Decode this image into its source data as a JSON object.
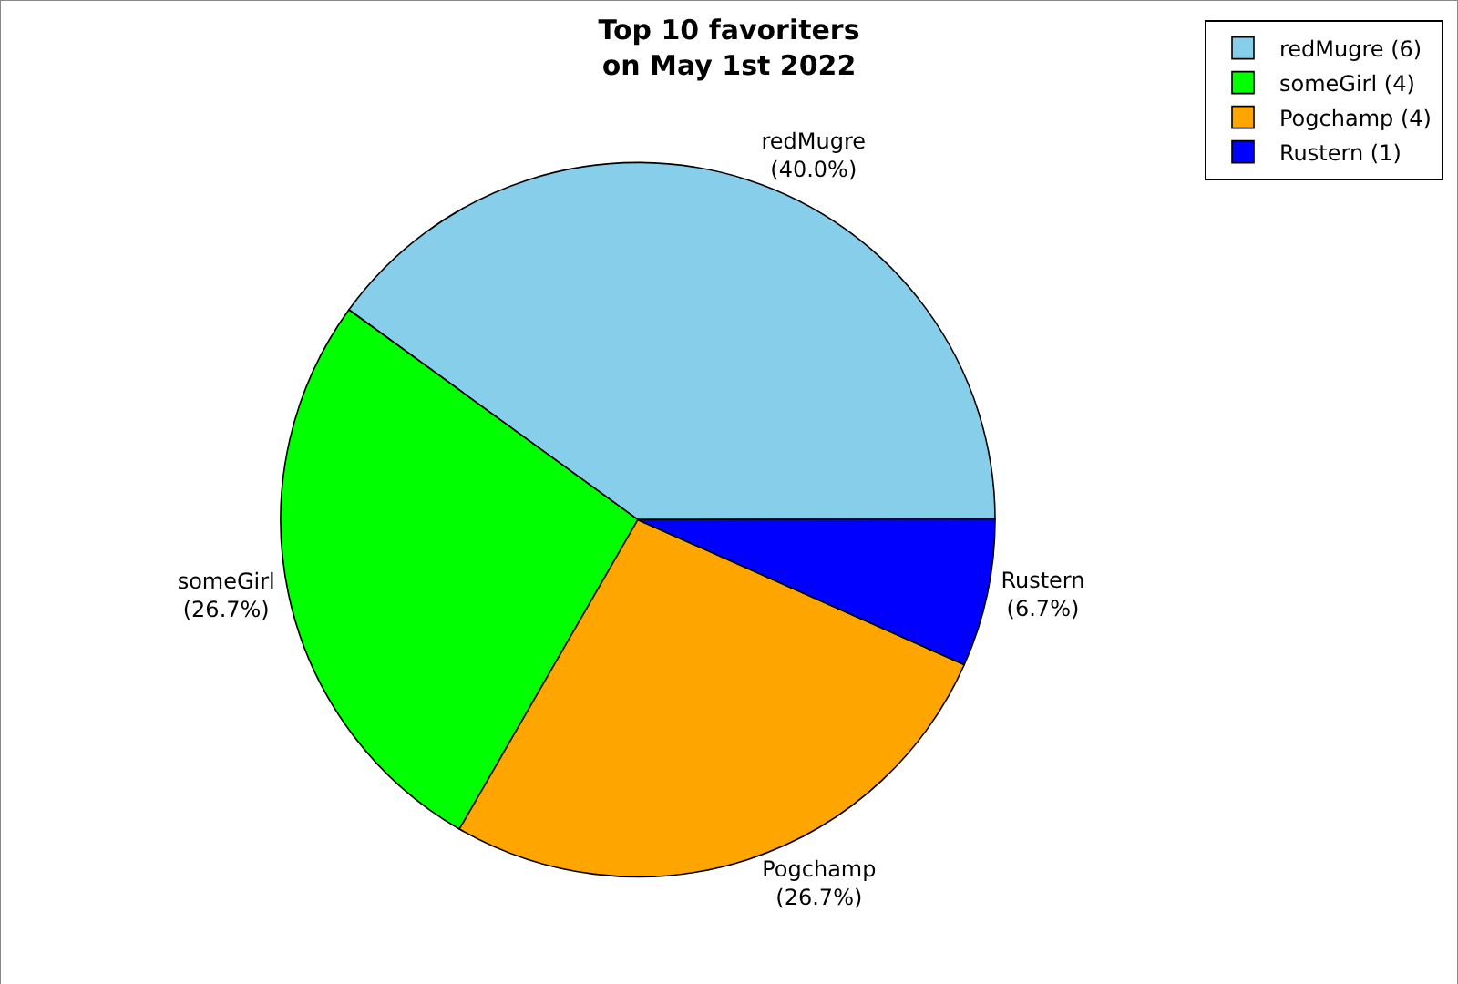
{
  "chart_data": {
    "type": "pie",
    "title": "Top 10 favoriters\non May 1st 2022",
    "categories": [
      "redMugre (6)",
      "someGirl (4)",
      "Pogchamp (4)",
      "Rustern (1)"
    ],
    "values": [
      40.0,
      26.7,
      26.7,
      6.7
    ],
    "value_labels": [
      "redMugre\n(40.0%)",
      "someGirl\n(26.7%)",
      "Pogchamp\n(26.7%)",
      "Rustern\n(6.7%)"
    ],
    "colors": [
      "#87ceeb",
      "#00ff00",
      "#ffa500",
      "#0000ff"
    ],
    "legend": "top right"
  }
}
